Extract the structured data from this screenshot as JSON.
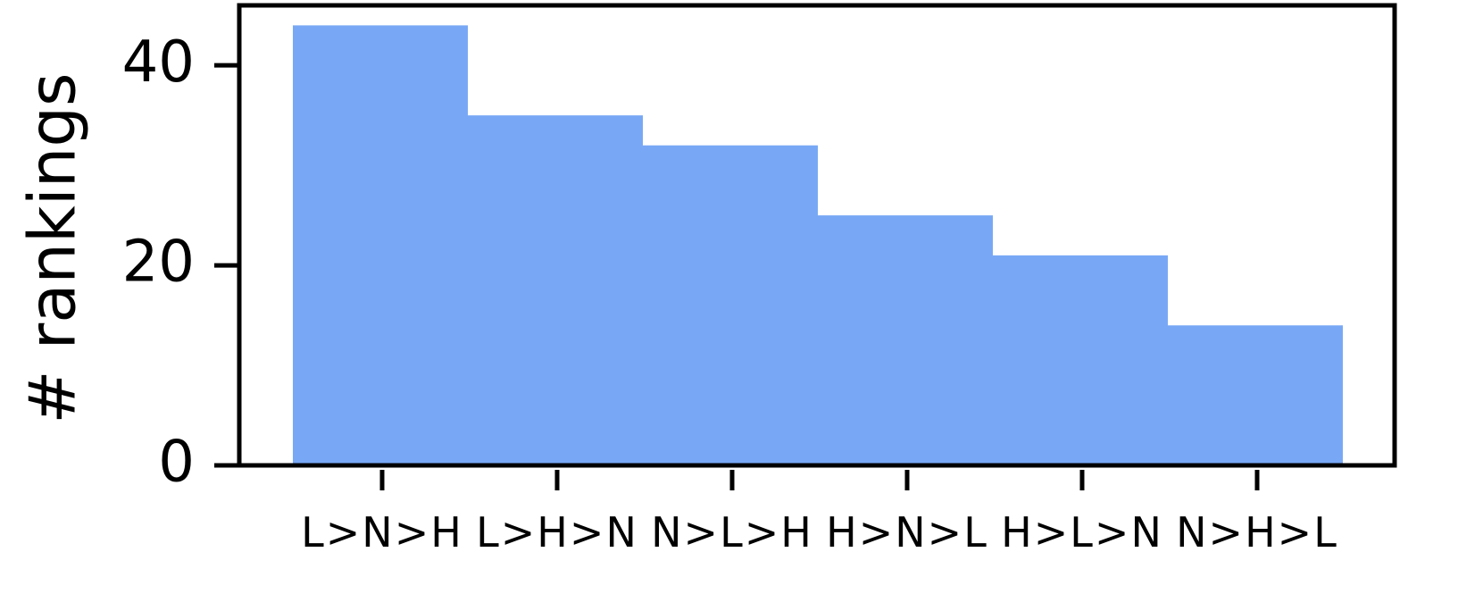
{
  "chart_data": {
    "type": "bar",
    "categories": [
      "L>N>H",
      "L>H>N",
      "N>L>H",
      "H>N>L",
      "H>L>N",
      "N>H>L"
    ],
    "values": [
      44,
      35,
      32,
      25,
      21,
      14
    ],
    "ylabel": "# rankings",
    "ylim": [
      0,
      46
    ],
    "yticks": [
      0,
      20,
      40
    ],
    "ytick_labels": [
      "0",
      "20",
      "40"
    ],
    "bar_color": "#78a8f5",
    "grid": false
  }
}
